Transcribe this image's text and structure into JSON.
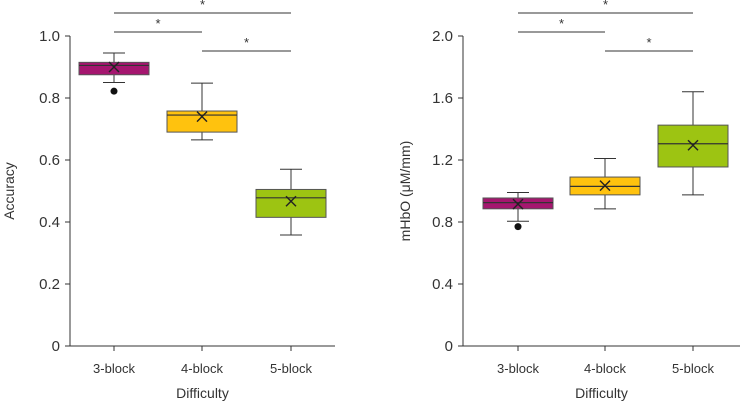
{
  "chart_data": [
    {
      "type": "box",
      "title": "",
      "xlabel": "Difficulty",
      "ylabel": "Accuracy",
      "ylim": [
        0,
        1.0
      ],
      "yticks": [
        "0",
        "0.2",
        "0.4",
        "0.6",
        "0.8",
        "1.0"
      ],
      "categories": [
        "3-block",
        "4-block",
        "5-block"
      ],
      "boxes": [
        {
          "category": "3-block",
          "whisker_low": 0.85,
          "q1": 0.875,
          "median": 0.905,
          "q3": 0.915,
          "whisker_high": 0.945,
          "mean": 0.9,
          "outliers": [
            0.822
          ],
          "color": "#A5166F"
        },
        {
          "category": "4-block",
          "whisker_low": 0.665,
          "q1": 0.69,
          "median": 0.745,
          "q3": 0.758,
          "whisker_high": 0.848,
          "mean": 0.74,
          "outliers": [],
          "color": "#FFC20E"
        },
        {
          "category": "5-block",
          "whisker_low": 0.358,
          "q1": 0.415,
          "median": 0.478,
          "q3": 0.505,
          "whisker_high": 0.57,
          "mean": 0.467,
          "outliers": [],
          "color": "#9DC412"
        }
      ],
      "significance": [
        {
          "from": 0,
          "to": 1,
          "label": "*",
          "level": 2
        },
        {
          "from": 0,
          "to": 2,
          "label": "*",
          "level": 1
        },
        {
          "from": 1,
          "to": 2,
          "label": "*",
          "level": 3
        }
      ]
    },
    {
      "type": "box",
      "title": "",
      "xlabel": "Difficulty",
      "ylabel": "mHbO (μM/mm)",
      "ylim": [
        0,
        2.0
      ],
      "yticks": [
        "0",
        "0.4",
        "0.8",
        "1.2",
        "1.6",
        "2.0"
      ],
      "categories": [
        "3-block",
        "4-block",
        "5-block"
      ],
      "boxes": [
        {
          "category": "3-block",
          "whisker_low": 0.805,
          "q1": 0.885,
          "median": 0.925,
          "q3": 0.955,
          "whisker_high": 0.99,
          "mean": 0.915,
          "outliers": [
            0.77
          ],
          "color": "#A5166F"
        },
        {
          "category": "4-block",
          "whisker_low": 0.885,
          "q1": 0.975,
          "median": 1.03,
          "q3": 1.09,
          "whisker_high": 1.21,
          "mean": 1.035,
          "outliers": [],
          "color": "#FFC20E"
        },
        {
          "category": "5-block",
          "whisker_low": 0.975,
          "q1": 1.155,
          "median": 1.305,
          "q3": 1.425,
          "whisker_high": 1.64,
          "mean": 1.295,
          "outliers": [],
          "color": "#9DC412"
        }
      ],
      "significance": [
        {
          "from": 0,
          "to": 1,
          "label": "*",
          "level": 2
        },
        {
          "from": 0,
          "to": 2,
          "label": "*",
          "level": 1
        },
        {
          "from": 1,
          "to": 2,
          "label": "*",
          "level": 3
        }
      ]
    }
  ]
}
